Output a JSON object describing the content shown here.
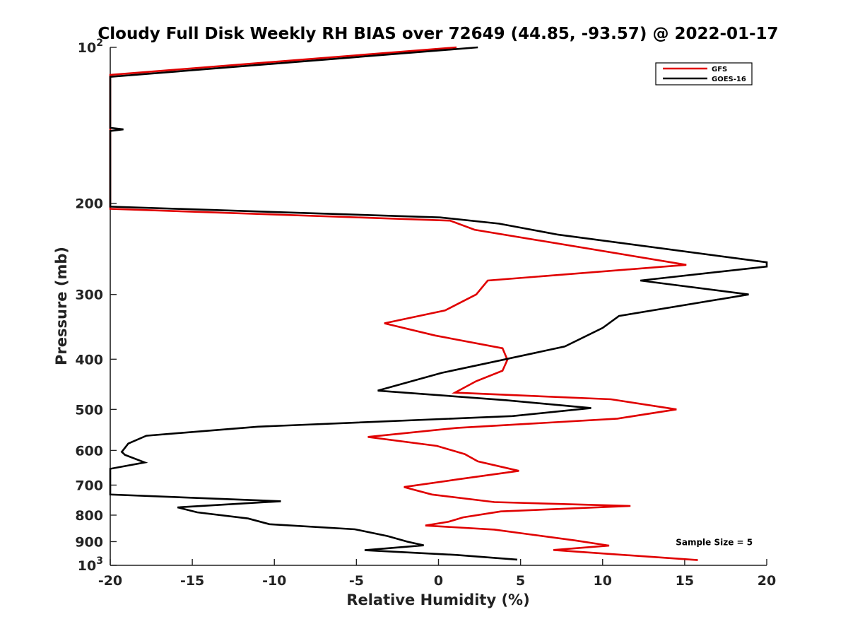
{
  "chart_data": {
    "type": "line",
    "title": "Cloudy Full Disk Weekly RH BIAS over 72649 (44.85, -93.57) @ 2022-01-17",
    "xlabel": "Relative Humidity (%)",
    "ylabel": "Pressure (mb)",
    "xlim": [
      -20,
      20
    ],
    "ylim": [
      100,
      1000
    ],
    "y_scale": "log",
    "y_reversed": true,
    "grid": false,
    "legend_position": "top-right",
    "x_ticks": [
      {
        "value": -20,
        "label": "-20"
      },
      {
        "value": -15,
        "label": "-15"
      },
      {
        "value": -10,
        "label": "-10"
      },
      {
        "value": -5,
        "label": "-5"
      },
      {
        "value": 0,
        "label": "0"
      },
      {
        "value": 5,
        "label": "5"
      },
      {
        "value": 10,
        "label": "10"
      },
      {
        "value": 15,
        "label": "15"
      },
      {
        "value": 20,
        "label": "20"
      }
    ],
    "y_ticks": [
      {
        "value": 100,
        "label": "10",
        "sup": "2"
      },
      {
        "value": 200,
        "label": "200",
        "sup": ""
      },
      {
        "value": 300,
        "label": "300",
        "sup": ""
      },
      {
        "value": 400,
        "label": "400",
        "sup": ""
      },
      {
        "value": 500,
        "label": "500",
        "sup": ""
      },
      {
        "value": 600,
        "label": "600",
        "sup": ""
      },
      {
        "value": 700,
        "label": "700",
        "sup": ""
      },
      {
        "value": 800,
        "label": "800",
        "sup": ""
      },
      {
        "value": 900,
        "label": "900",
        "sup": ""
      },
      {
        "value": 1000,
        "label": "10",
        "sup": "3"
      }
    ],
    "series": [
      {
        "name": "GFS",
        "color": "#e00000",
        "points": [
          [
            1.1,
            100
          ],
          [
            -20,
            113
          ],
          [
            -20,
            205
          ],
          [
            0.7,
            216
          ],
          [
            2.2,
            225
          ],
          [
            15.1,
            263
          ],
          [
            3,
            282
          ],
          [
            2.3,
            300
          ],
          [
            0.4,
            322
          ],
          [
            -3.3,
            341
          ],
          [
            -0.2,
            360
          ],
          [
            3.9,
            381
          ],
          [
            4.2,
            401
          ],
          [
            3.9,
            421
          ],
          [
            2.3,
            441
          ],
          [
            1.0,
            464
          ],
          [
            10.5,
            478
          ],
          [
            14.5,
            500
          ],
          [
            10.9,
            521
          ],
          [
            1.1,
            543
          ],
          [
            -4.3,
            565
          ],
          [
            -0.1,
            588
          ],
          [
            1.6,
            610
          ],
          [
            2.4,
            630
          ],
          [
            4.9,
            657
          ],
          [
            1.1,
            683
          ],
          [
            -2.1,
            706
          ],
          [
            -0.4,
            730
          ],
          [
            3.4,
            755
          ],
          [
            11.7,
            768
          ],
          [
            3.8,
            787
          ],
          [
            1.5,
            808
          ],
          [
            0.6,
            824
          ],
          [
            -0.8,
            838
          ],
          [
            3.4,
            853
          ],
          [
            5.5,
            871
          ],
          [
            8.3,
            895
          ],
          [
            10.4,
            916
          ],
          [
            7.0,
            934
          ],
          [
            15.8,
            977
          ]
        ]
      },
      {
        "name": "GOES-16",
        "color": "#000000",
        "points": [
          [
            2.4,
            100
          ],
          [
            -20,
            114
          ],
          [
            -20,
            143
          ],
          [
            -19.2,
            144
          ],
          [
            -20,
            145
          ],
          [
            -20,
            203
          ],
          [
            0.1,
            213
          ],
          [
            3.7,
            219
          ],
          [
            7.3,
            230
          ],
          [
            20,
            260
          ],
          [
            20,
            265
          ],
          [
            12.3,
            282
          ],
          [
            18.9,
            300
          ],
          [
            11.0,
            330
          ],
          [
            10.0,
            348
          ],
          [
            7.7,
            378
          ],
          [
            4.1,
            400
          ],
          [
            0.2,
            425
          ],
          [
            -3.7,
            460
          ],
          [
            4.1,
            480
          ],
          [
            9.3,
            497
          ],
          [
            4.5,
            515
          ],
          [
            -11,
            540
          ],
          [
            -17.8,
            562
          ],
          [
            -18.9,
            582
          ],
          [
            -19.3,
            604
          ],
          [
            -19.1,
            612
          ],
          [
            -17.9,
            633
          ],
          [
            -20,
            651
          ],
          [
            -20,
            730
          ],
          [
            -9.6,
            752
          ],
          [
            -15.9,
            773
          ],
          [
            -14.7,
            790
          ],
          [
            -11.6,
            812
          ],
          [
            -10.3,
            833
          ],
          [
            -5.1,
            852
          ],
          [
            -3.1,
            878
          ],
          [
            -1.9,
            900
          ],
          [
            -0.9,
            915
          ],
          [
            -4.5,
            935
          ],
          [
            1.1,
            955
          ],
          [
            4.8,
            975
          ]
        ]
      }
    ],
    "annotations": [
      {
        "text": "Sample Size = 5",
        "x": 16.8,
        "y": 900
      }
    ]
  }
}
